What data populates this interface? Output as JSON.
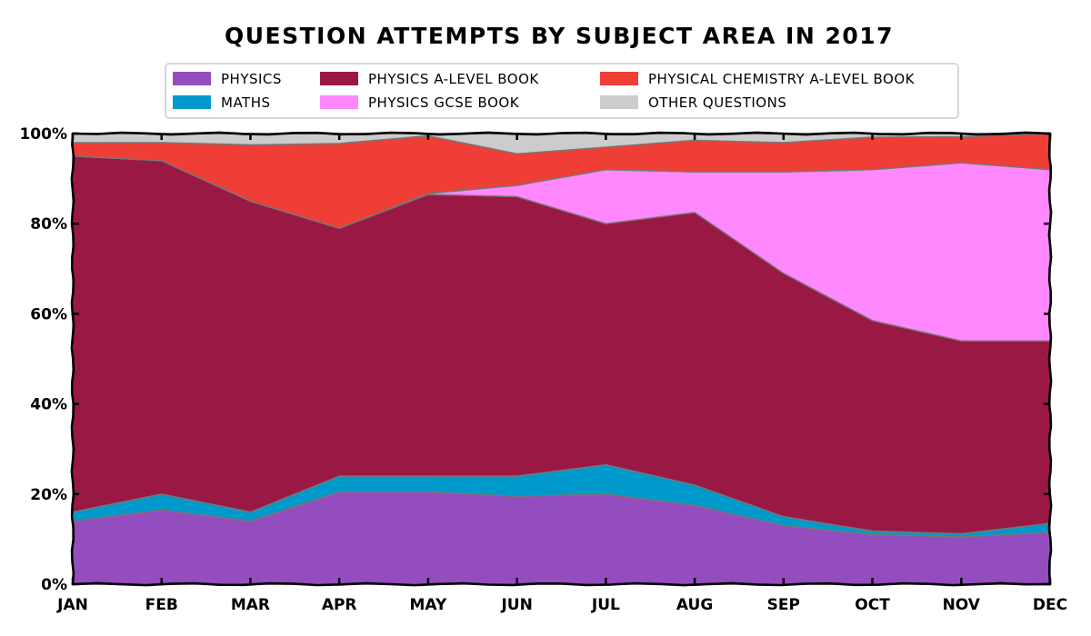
{
  "chart_data": {
    "type": "area",
    "stacked": true,
    "normalized": true,
    "title": "Question attempts by subject area in 2017",
    "xlabel": "",
    "ylabel": "",
    "categories": [
      "Jan",
      "Feb",
      "Mar",
      "Apr",
      "May",
      "Jun",
      "Jul",
      "Aug",
      "Sep",
      "Oct",
      "Nov",
      "Dec"
    ],
    "y_ticks": [
      "0%",
      "20%",
      "40%",
      "60%",
      "80%",
      "100%"
    ],
    "ylim": [
      0,
      100
    ],
    "legend_position": "top",
    "grid": false,
    "series": [
      {
        "name": "Physics",
        "color": "#944dbf",
        "values": [
          14,
          16.5,
          14,
          20.5,
          20.5,
          19.5,
          20,
          17.5,
          13,
          11,
          10.5,
          11.5
        ]
      },
      {
        "name": "Maths",
        "color": "#0099cc",
        "values": [
          2,
          3.5,
          2,
          3.5,
          3.5,
          4.5,
          6.5,
          4.5,
          2,
          0.8,
          0.7,
          2
        ]
      },
      {
        "name": "Physics A-Level Book",
        "color": "#991944",
        "values": [
          79,
          74,
          69,
          55,
          62.5,
          62,
          53.5,
          60.5,
          54,
          46.7,
          42.8,
          40.5
        ]
      },
      {
        "name": "Physics GCSE Book",
        "color": "#ff88ff",
        "values": [
          0,
          0,
          0,
          0,
          0.2,
          2.5,
          12,
          9,
          22.5,
          33.5,
          39.5,
          38
        ]
      },
      {
        "name": "Physical Chemistry A-Level Book",
        "color": "#ef3e36",
        "values": [
          3,
          4,
          12.5,
          18.8,
          12.8,
          7,
          5,
          7,
          6.5,
          7.2,
          5.8,
          8
        ]
      },
      {
        "name": "Other Questions",
        "color": "#cccccc",
        "values": [
          2,
          2,
          2.5,
          2.2,
          0.5,
          4.5,
          3,
          1.5,
          2,
          0.8,
          0.7,
          0
        ]
      }
    ]
  }
}
